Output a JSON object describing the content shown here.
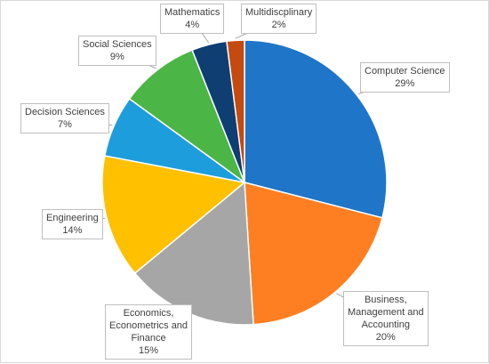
{
  "chart_data": {
    "type": "pie",
    "title": "",
    "slices": [
      {
        "label": "Computer Science",
        "label_lines": [
          "Computer Science"
        ],
        "pct_text": "29%",
        "value": 29,
        "color": "#1f75c8"
      },
      {
        "label": "Business, Management and Accounting",
        "label_lines": [
          "Business,",
          "Management and",
          "Accounting"
        ],
        "pct_text": "20%",
        "value": 20,
        "color": "#fd7f22"
      },
      {
        "label": "Economics, Econometrics and Finance",
        "label_lines": [
          "Economics,",
          "Econometrics and",
          "Finance"
        ],
        "pct_text": "15%",
        "value": 15,
        "color": "#a6a6a6"
      },
      {
        "label": "Engineering",
        "label_lines": [
          "Engineering"
        ],
        "pct_text": "14%",
        "value": 14,
        "color": "#ffc000"
      },
      {
        "label": "Decision Sciences",
        "label_lines": [
          "Decision Sciences"
        ],
        "pct_text": "7%",
        "value": 7,
        "color": "#1e9ddd"
      },
      {
        "label": "Social Sciences",
        "label_lines": [
          "Social Sciences"
        ],
        "pct_text": "9%",
        "value": 9,
        "color": "#4bb545"
      },
      {
        "label": "Mathematics",
        "label_lines": [
          "Mathematics"
        ],
        "pct_text": "4%",
        "value": 4,
        "color": "#0f3e73"
      },
      {
        "label": "Multidiscplinary",
        "label_lines": [
          "Multidiscplinary"
        ],
        "pct_text": "2%",
        "value": 2,
        "color": "#c54a10"
      }
    ],
    "legend": "none",
    "start": "top",
    "direction": "clockwise"
  }
}
